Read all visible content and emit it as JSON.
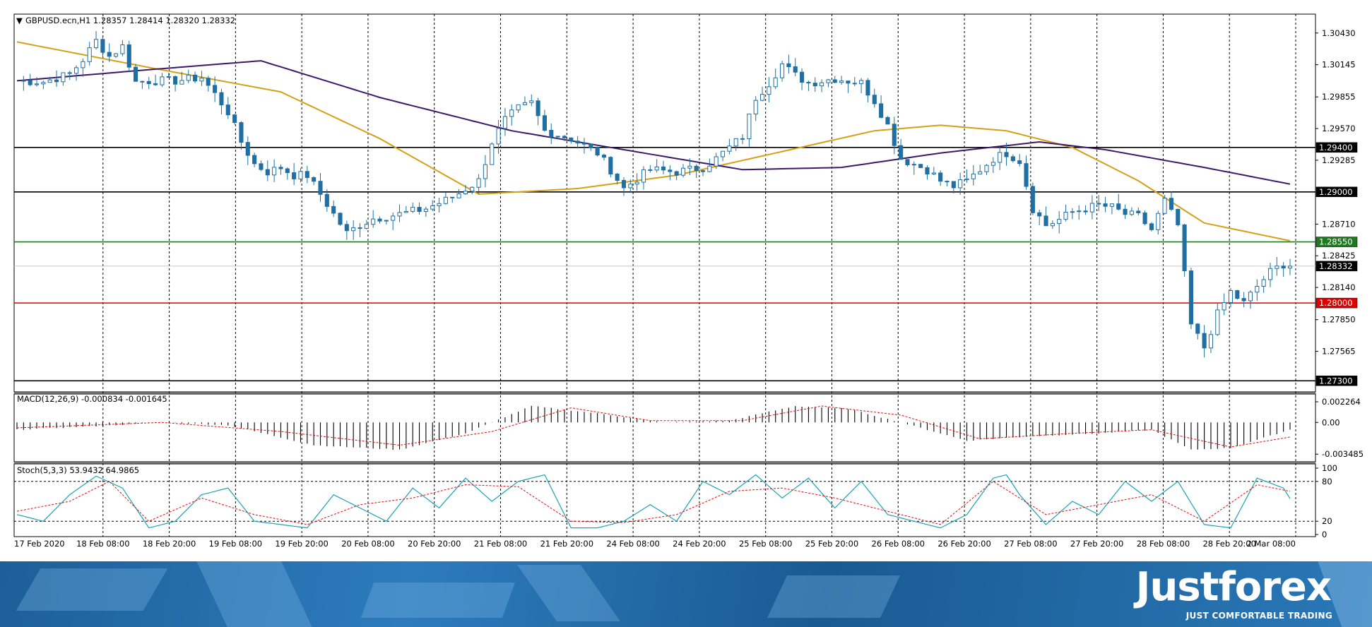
{
  "header": {
    "symbol_line": "GBPUSD.ecn,H1  1.28357 1.28414 1.28320 1.28332",
    "macd_label": "MACD(12,26,9) -0.000834 -0.001645",
    "stoch_label": "Stoch(5,3,3) 53.9432 64.9865"
  },
  "chart_data": {
    "type": "candlestick",
    "symbol": "GBPUSD.ecn",
    "timeframe": "H1",
    "ohlc_current": {
      "open": 1.28357,
      "high": 1.28414,
      "low": 1.2832,
      "close": 1.28332
    },
    "price_axis_ticks": [
      "1.30430",
      "1.30145",
      "1.29855",
      "1.29570",
      "1.29285",
      "1.28710",
      "1.28425",
      "1.28140",
      "1.27850",
      "1.27565"
    ],
    "ylim": [
      1.272,
      1.306
    ],
    "time_axis_labels": [
      "17 Feb 2020",
      "18 Feb 08:00",
      "18 Feb 20:00",
      "19 Feb 08:00",
      "19 Feb 20:00",
      "20 Feb 08:00",
      "20 Feb 20:00",
      "21 Feb 08:00",
      "21 Feb 20:00",
      "24 Feb 08:00",
      "24 Feb 20:00",
      "25 Feb 08:00",
      "25 Feb 20:00",
      "26 Feb 08:00",
      "26 Feb 20:00",
      "27 Feb 08:00",
      "27 Feb 20:00",
      "28 Feb 08:00",
      "28 Feb 20:00",
      "2 Mar 08:00"
    ],
    "horizontal_levels": [
      {
        "price": 1.294,
        "label": "1.29400",
        "color": "#000000"
      },
      {
        "price": 1.29,
        "label": "1.29000",
        "color": "#000000"
      },
      {
        "price": 1.2855,
        "label": "1.28550",
        "color": "#1f7a1f"
      },
      {
        "price": 1.28,
        "label": "1.28000",
        "color": "#e00000"
      },
      {
        "price": 1.273,
        "label": "1.27300",
        "color": "#000000"
      }
    ],
    "bid_line": {
      "price": 1.28332,
      "label": "1.28332"
    },
    "close_path": [
      [
        0,
        1.3
      ],
      [
        4,
        1.2999
      ],
      [
        8,
        1.3006
      ],
      [
        10,
        1.3019
      ],
      [
        12,
        1.3036
      ],
      [
        14,
        1.3022
      ],
      [
        16,
        1.3031
      ],
      [
        18,
        1.2999
      ],
      [
        20,
        1.3
      ],
      [
        24,
        1.3
      ],
      [
        28,
        1.3003
      ],
      [
        30,
        1.2988
      ],
      [
        32,
        1.2972
      ],
      [
        34,
        1.2945
      ],
      [
        36,
        1.2925
      ],
      [
        38,
        1.2918
      ],
      [
        40,
        1.2922
      ],
      [
        42,
        1.2915
      ],
      [
        44,
        1.2915
      ],
      [
        46,
        1.2898
      ],
      [
        48,
        1.288
      ],
      [
        50,
        1.2863
      ],
      [
        52,
        1.287
      ],
      [
        54,
        1.2876
      ],
      [
        58,
        1.288
      ],
      [
        62,
        1.2885
      ],
      [
        66,
        1.2895
      ],
      [
        70,
        1.291
      ],
      [
        72,
        1.2945
      ],
      [
        74,
        1.2965
      ],
      [
        76,
        1.2975
      ],
      [
        78,
        1.298
      ],
      [
        80,
        1.2955
      ],
      [
        84,
        1.2948
      ],
      [
        88,
        1.2935
      ],
      [
        90,
        1.292
      ],
      [
        92,
        1.2903
      ],
      [
        94,
        1.2912
      ],
      [
        96,
        1.292
      ],
      [
        100,
        1.2918
      ],
      [
        104,
        1.2922
      ],
      [
        106,
        1.293
      ],
      [
        108,
        1.294
      ],
      [
        110,
        1.295
      ],
      [
        112,
        1.2985
      ],
      [
        114,
        1.2998
      ],
      [
        116,
        1.3015
      ],
      [
        118,
        1.3005
      ],
      [
        120,
        1.2998
      ],
      [
        124,
        1.3002
      ],
      [
        128,
        1.2998
      ],
      [
        130,
        1.2982
      ],
      [
        132,
        1.296
      ],
      [
        134,
        1.293
      ],
      [
        136,
        1.2925
      ],
      [
        138,
        1.292
      ],
      [
        140,
        1.291
      ],
      [
        142,
        1.2905
      ],
      [
        144,
        1.291
      ],
      [
        146,
        1.292
      ],
      [
        148,
        1.293
      ],
      [
        150,
        1.2935
      ],
      [
        152,
        1.2928
      ],
      [
        154,
        1.2885
      ],
      [
        156,
        1.287
      ],
      [
        158,
        1.2875
      ],
      [
        160,
        1.2882
      ],
      [
        162,
        1.2885
      ],
      [
        164,
        1.2888
      ],
      [
        166,
        1.2886
      ],
      [
        168,
        1.288
      ],
      [
        170,
        1.2878
      ],
      [
        172,
        1.2866
      ],
      [
        174,
        1.2892
      ],
      [
        176,
        1.287
      ],
      [
        178,
        1.278
      ],
      [
        180,
        1.276
      ],
      [
        182,
        1.279
      ],
      [
        184,
        1.281
      ],
      [
        186,
        1.28
      ],
      [
        188,
        1.2815
      ],
      [
        190,
        1.2828
      ],
      [
        192,
        1.2835
      ],
      [
        193,
        1.28332
      ]
    ],
    "series": [
      {
        "name": "",
        "color": "#d4a017",
        "values": [
          [
            0,
            1.3035
          ],
          [
            20,
            1.3012
          ],
          [
            40,
            1.299
          ],
          [
            55,
            1.2948
          ],
          [
            70,
            1.2898
          ],
          [
            85,
            1.2903
          ],
          [
            100,
            1.2915
          ],
          [
            115,
            1.2935
          ],
          [
            130,
            1.2955
          ],
          [
            140,
            1.296
          ],
          [
            150,
            1.2955
          ],
          [
            160,
            1.294
          ],
          [
            170,
            1.291
          ],
          [
            180,
            1.2872
          ],
          [
            193,
            1.2856
          ]
        ]
      },
      {
        "name": "",
        "color": "#3b1a6b",
        "values": [
          [
            0,
            1.3
          ],
          [
            20,
            1.301
          ],
          [
            37,
            1.3018
          ],
          [
            55,
            1.2985
          ],
          [
            75,
            1.2955
          ],
          [
            95,
            1.2935
          ],
          [
            110,
            1.292
          ],
          [
            125,
            1.2922
          ],
          [
            140,
            1.2935
          ],
          [
            155,
            1.2945
          ],
          [
            165,
            1.2938
          ],
          [
            180,
            1.2922
          ],
          [
            193,
            1.2907
          ]
        ]
      }
    ],
    "macd": {
      "ticks": [
        "0.002264",
        "0.00",
        "-0.003485"
      ],
      "ylim": [
        -0.0037,
        0.0025
      ],
      "hist_points": [
        [
          0,
          -0.0008
        ],
        [
          12,
          -0.0004
        ],
        [
          22,
          0.0
        ],
        [
          32,
          -0.0003
        ],
        [
          45,
          -0.0025
        ],
        [
          58,
          -0.003
        ],
        [
          68,
          -0.0012
        ],
        [
          78,
          0.0018
        ],
        [
          88,
          0.001
        ],
        [
          98,
          0.0
        ],
        [
          108,
          0.0002
        ],
        [
          118,
          0.0018
        ],
        [
          126,
          0.0015
        ],
        [
          134,
          0.0
        ],
        [
          144,
          -0.002
        ],
        [
          154,
          -0.0015
        ],
        [
          164,
          -0.0012
        ],
        [
          172,
          -0.0008
        ],
        [
          178,
          -0.003
        ],
        [
          184,
          -0.0028
        ],
        [
          193,
          -0.0008
        ]
      ],
      "signal_points": [
        [
          0,
          -0.0006
        ],
        [
          22,
          0.0
        ],
        [
          40,
          -0.001
        ],
        [
          58,
          -0.0025
        ],
        [
          72,
          -0.001
        ],
        [
          84,
          0.0016
        ],
        [
          96,
          0.0002
        ],
        [
          110,
          0.0002
        ],
        [
          122,
          0.0018
        ],
        [
          134,
          0.0008
        ],
        [
          146,
          -0.0018
        ],
        [
          160,
          -0.0012
        ],
        [
          172,
          -0.0008
        ],
        [
          184,
          -0.0027
        ],
        [
          193,
          -0.0016
        ]
      ]
    },
    "stochastic": {
      "ticks": [
        "100",
        "80",
        "20",
        "0"
      ],
      "levels": [
        80,
        20
      ],
      "k_points": [
        [
          0,
          30
        ],
        [
          4,
          20
        ],
        [
          8,
          60
        ],
        [
          12,
          88
        ],
        [
          16,
          70
        ],
        [
          20,
          10
        ],
        [
          24,
          20
        ],
        [
          28,
          60
        ],
        [
          32,
          70
        ],
        [
          36,
          20
        ],
        [
          40,
          15
        ],
        [
          44,
          10
        ],
        [
          48,
          60
        ],
        [
          52,
          40
        ],
        [
          56,
          20
        ],
        [
          60,
          70
        ],
        [
          64,
          40
        ],
        [
          68,
          85
        ],
        [
          72,
          50
        ],
        [
          76,
          80
        ],
        [
          80,
          90
        ],
        [
          84,
          10
        ],
        [
          88,
          10
        ],
        [
          92,
          20
        ],
        [
          96,
          45
        ],
        [
          100,
          20
        ],
        [
          104,
          80
        ],
        [
          108,
          60
        ],
        [
          112,
          90
        ],
        [
          116,
          55
        ],
        [
          120,
          85
        ],
        [
          124,
          40
        ],
        [
          128,
          80
        ],
        [
          132,
          30
        ],
        [
          136,
          20
        ],
        [
          140,
          10
        ],
        [
          144,
          30
        ],
        [
          148,
          85
        ],
        [
          150,
          90
        ],
        [
          152,
          60
        ],
        [
          156,
          15
        ],
        [
          160,
          50
        ],
        [
          164,
          30
        ],
        [
          168,
          80
        ],
        [
          172,
          50
        ],
        [
          176,
          80
        ],
        [
          180,
          15
        ],
        [
          184,
          10
        ],
        [
          188,
          85
        ],
        [
          192,
          70
        ],
        [
          193,
          54
        ]
      ],
      "d_points": [
        [
          0,
          35
        ],
        [
          8,
          50
        ],
        [
          14,
          80
        ],
        [
          20,
          20
        ],
        [
          28,
          55
        ],
        [
          36,
          30
        ],
        [
          44,
          15
        ],
        [
          52,
          45
        ],
        [
          60,
          55
        ],
        [
          68,
          75
        ],
        [
          76,
          72
        ],
        [
          84,
          20
        ],
        [
          92,
          18
        ],
        [
          100,
          30
        ],
        [
          108,
          65
        ],
        [
          116,
          70
        ],
        [
          124,
          55
        ],
        [
          132,
          35
        ],
        [
          140,
          15
        ],
        [
          148,
          80
        ],
        [
          156,
          30
        ],
        [
          164,
          45
        ],
        [
          172,
          60
        ],
        [
          180,
          20
        ],
        [
          188,
          75
        ],
        [
          193,
          65
        ]
      ]
    }
  },
  "branding": {
    "logo_text": "Justforex",
    "tagline": "JUST COMFORTABLE TRADING"
  }
}
